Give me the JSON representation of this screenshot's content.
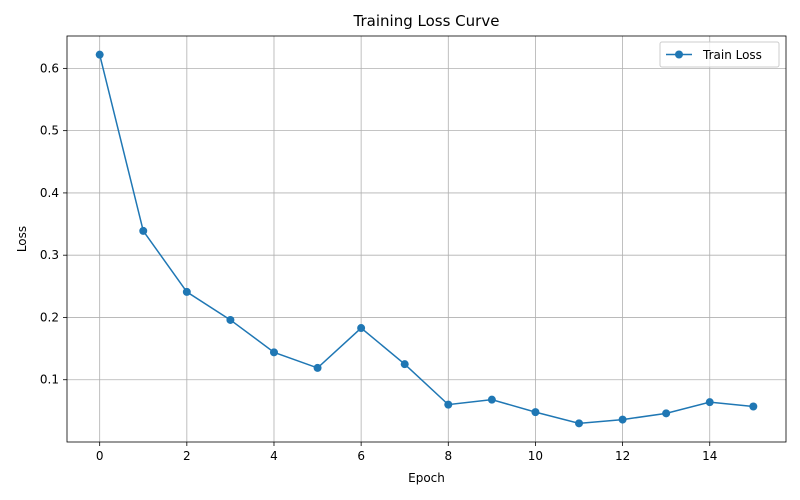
{
  "chart_data": {
    "type": "line",
    "title": "Training Loss Curve",
    "xlabel": "Epoch",
    "ylabel": "Loss",
    "xlim": [
      -0.75,
      15.75
    ],
    "ylim": [
      0.0,
      0.652
    ],
    "xticks": [
      0,
      2,
      4,
      6,
      8,
      10,
      12,
      14
    ],
    "xtick_labels": [
      "0",
      "2",
      "4",
      "6",
      "8",
      "10",
      "12",
      "14"
    ],
    "yticks": [
      0.1,
      0.2,
      0.3,
      0.4,
      0.5,
      0.6
    ],
    "ytick_labels": [
      "0.1",
      "0.2",
      "0.3",
      "0.4",
      "0.5",
      "0.6"
    ],
    "grid": true,
    "legend_position": "top-right",
    "series": [
      {
        "name": "Train Loss",
        "color": "#1f77b4",
        "marker": "circle",
        "x": [
          0,
          1,
          2,
          3,
          4,
          5,
          6,
          7,
          8,
          9,
          10,
          11,
          12,
          13,
          14,
          15
        ],
        "y": [
          0.622,
          0.339,
          0.241,
          0.196,
          0.144,
          0.119,
          0.183,
          0.125,
          0.06,
          0.068,
          0.048,
          0.03,
          0.036,
          0.046,
          0.064,
          0.057
        ]
      }
    ]
  }
}
